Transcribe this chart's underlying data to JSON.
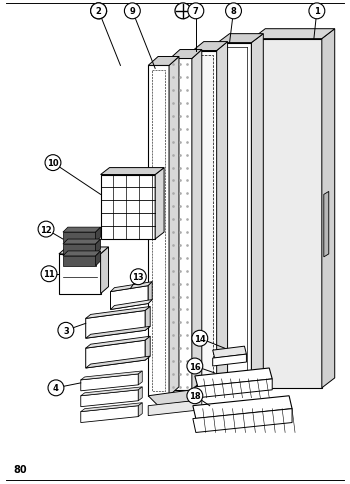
{
  "page_number": "80",
  "bg": "#ffffff",
  "lc": "#000000",
  "gray1": "#c8c8c8",
  "gray2": "#e0e0e0",
  "gray3": "#f0f0f0",
  "dark": "#444444"
}
